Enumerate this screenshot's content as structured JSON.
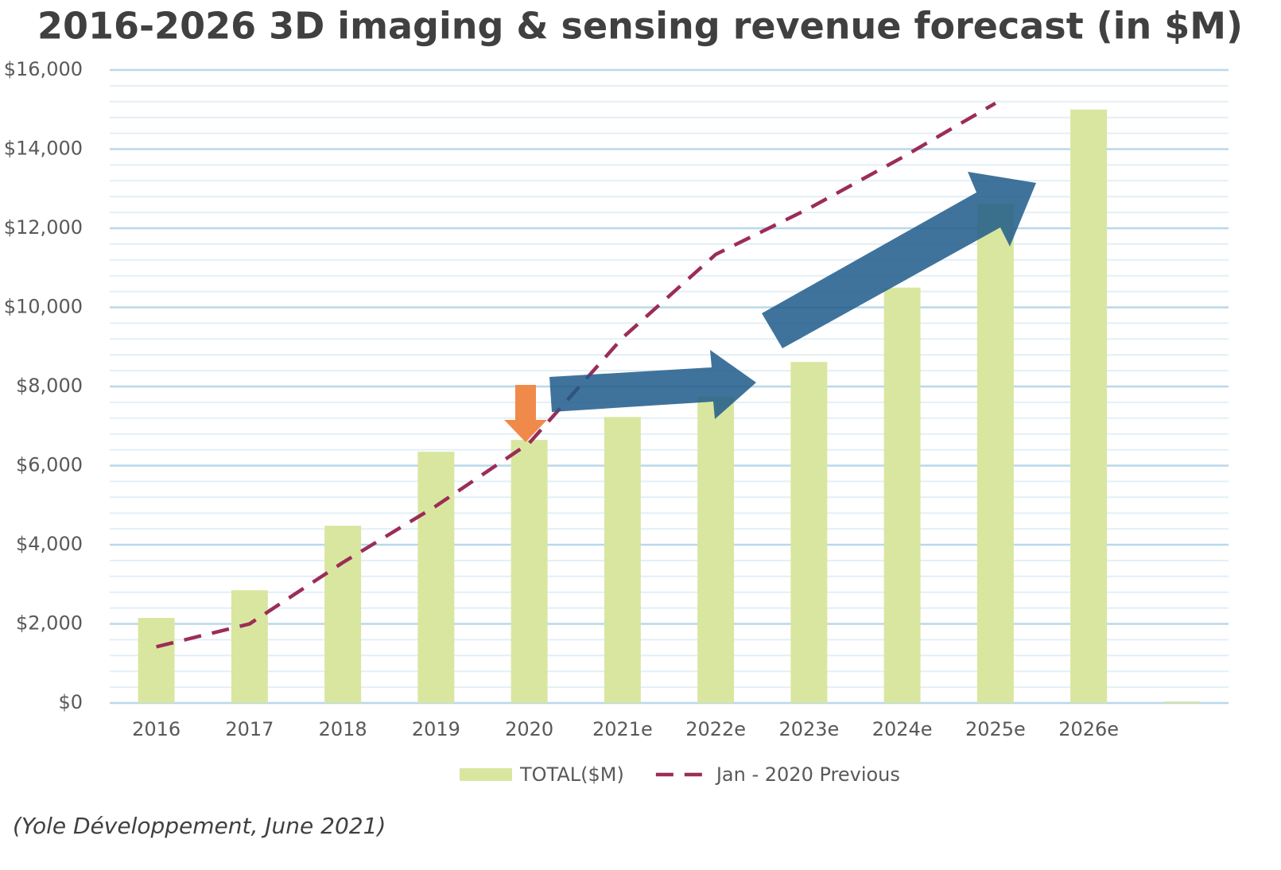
{
  "chart_data": {
    "type": "bar",
    "title": "2016-2026 3D imaging & sensing revenue forecast (in $M)",
    "source": "(Yole Développement, June 2021)",
    "categories": [
      "2016",
      "2017",
      "2018",
      "2019",
      "2020",
      "2021e",
      "2022e",
      "2023e",
      "2024e",
      "2025e",
      "2026e",
      null
    ],
    "series": [
      {
        "name": "TOTAL($M)",
        "type": "bar",
        "color": "#d9e6a0",
        "values": [
          2150,
          2850,
          4480,
          6350,
          6650,
          7230,
          7750,
          8620,
          10500,
          12620,
          15000,
          40
        ]
      },
      {
        "name": "Jan - 2020 Previous",
        "type": "line",
        "dashed": true,
        "color": "#9b2d57",
        "values": [
          1420,
          2000,
          3550,
          4980,
          6570,
          9230,
          11340,
          12500,
          13790,
          15160,
          null,
          null
        ]
      }
    ],
    "ylim": [
      0,
      16000
    ],
    "yticks": [
      {
        "value": 0,
        "label": "$0"
      },
      {
        "value": 2000,
        "label": "$2,000"
      },
      {
        "value": 4000,
        "label": "$4,000"
      },
      {
        "value": 6000,
        "label": "$6,000"
      },
      {
        "value": 8000,
        "label": "$8,000"
      },
      {
        "value": 10000,
        "label": "$10,000"
      },
      {
        "value": 12000,
        "label": "$12,000"
      },
      {
        "value": 14000,
        "label": "$14,000"
      },
      {
        "value": 16000,
        "label": "$16,000"
      }
    ],
    "minor_yticks": [
      400,
      800,
      1200,
      1600,
      2400,
      2800,
      3200,
      3600,
      4400,
      4800,
      5200,
      5600,
      6400,
      6800,
      7200,
      7600,
      8400,
      8800,
      9200,
      9600,
      10400,
      10800,
      11200,
      11600,
      12400,
      12800,
      13200,
      13600,
      14400,
      14800,
      15200,
      15600
    ],
    "grid": true,
    "legend": "bottom"
  }
}
